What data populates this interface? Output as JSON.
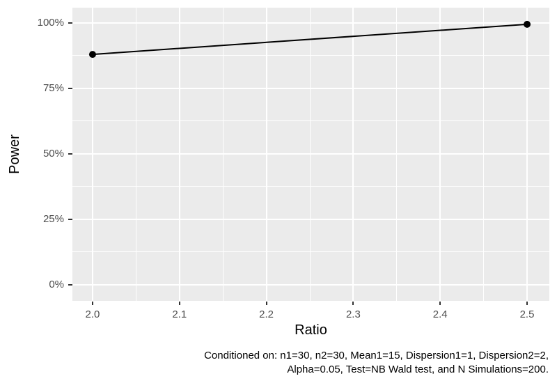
{
  "colors": {
    "background": "#FFFFFF",
    "panel_background": "#EBEBEB",
    "gridline": "#FFFFFF",
    "axis_text": "#4D4D4D",
    "tick_mark": "#333333",
    "series": "#000000",
    "title_text": "#000000"
  },
  "chart_data": {
    "type": "line",
    "title": "",
    "xlabel": "Ratio",
    "ylabel": "Power",
    "series": [
      {
        "name": "Power",
        "points": [
          {
            "x": 2.0,
            "y": 0.88
          },
          {
            "x": 2.5,
            "y": 0.995
          }
        ]
      }
    ],
    "x_ticks": {
      "values": [
        2.0,
        2.1,
        2.2,
        2.3,
        2.4,
        2.5
      ],
      "labels": [
        "2.0",
        "2.1",
        "2.2",
        "2.3",
        "2.4",
        "2.5"
      ]
    },
    "y_ticks": {
      "values": [
        0,
        0.25,
        0.5,
        0.75,
        1.0
      ],
      "labels": [
        "0%",
        "25%",
        "50%",
        "75%",
        "100%"
      ]
    },
    "x_domain": [
      1.9768,
      2.5256
    ],
    "y_domain": [
      -0.0612,
      1.0585
    ],
    "grid": "major+minor",
    "legend": "none"
  },
  "caption": {
    "line1": "Conditioned on: n1=30, n2=30, Mean1=15, Dispersion1=1, Dispersion2=2,",
    "line2": "Alpha=0.05, Test=NB Wald test, and N Simulations=200."
  }
}
